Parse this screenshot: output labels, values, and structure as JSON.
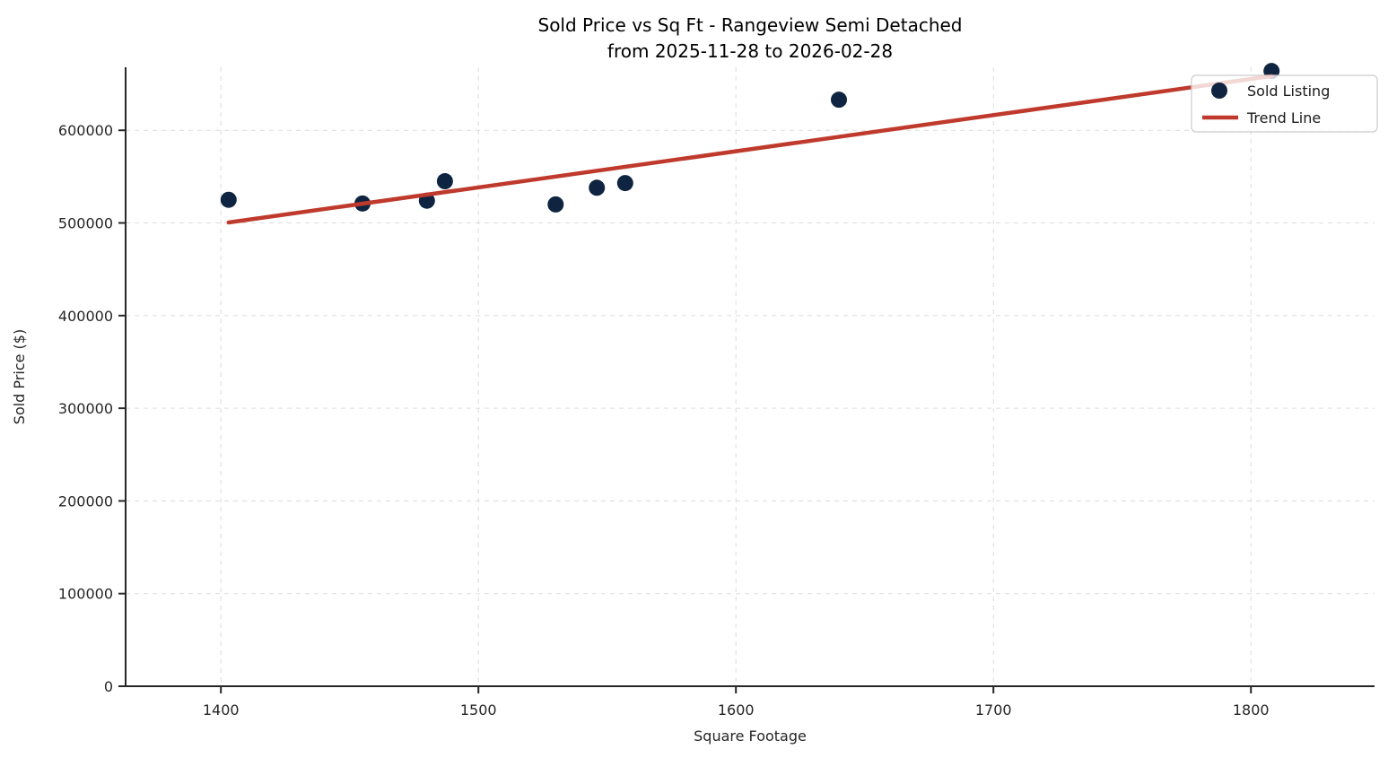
{
  "figure": {
    "title_line1": "Sold Price vs Sq Ft - Rangeview Semi Detached",
    "title_line2": "from 2025-11-28 to 2026-02-28"
  },
  "chart_data": {
    "type": "scatter",
    "title": "Sold Price vs Sq Ft - Rangeview Semi Detached\nfrom 2025-11-28 to 2026-02-28",
    "xlabel": "Square Footage",
    "ylabel": "Sold Price ($)",
    "xlim": [
      1363,
      1848
    ],
    "ylim": [
      0,
      668000
    ],
    "x_ticks": [
      1400,
      1500,
      1600,
      1700,
      1800
    ],
    "y_ticks": [
      0,
      100000,
      200000,
      300000,
      400000,
      500000,
      600000
    ],
    "grid": true,
    "colors": {
      "scatter": "#0e2440",
      "trend": "#bf3a2c",
      "spine": "#262626",
      "grid": "#dcdcdc"
    },
    "legend": {
      "position": "upper right",
      "entries": [
        {
          "label": "Sold Listing",
          "type": "marker",
          "color": "#0e2440"
        },
        {
          "label": "Trend Line",
          "type": "line",
          "color": "#bf3a2c"
        }
      ]
    },
    "series": [
      {
        "name": "Sold Listing",
        "type": "scatter",
        "color": "#0e2440",
        "points": [
          [
            1403,
            525000
          ],
          [
            1455,
            521000
          ],
          [
            1480,
            524000
          ],
          [
            1487,
            545000
          ],
          [
            1530,
            520000
          ],
          [
            1546,
            538000
          ],
          [
            1557,
            543000
          ],
          [
            1640,
            633000
          ],
          [
            1808,
            664000
          ]
        ]
      },
      {
        "name": "Trend Line",
        "type": "line",
        "color": "#bf3a2c",
        "points": [
          [
            1403,
            500500
          ],
          [
            1808,
            658500
          ]
        ]
      }
    ]
  }
}
